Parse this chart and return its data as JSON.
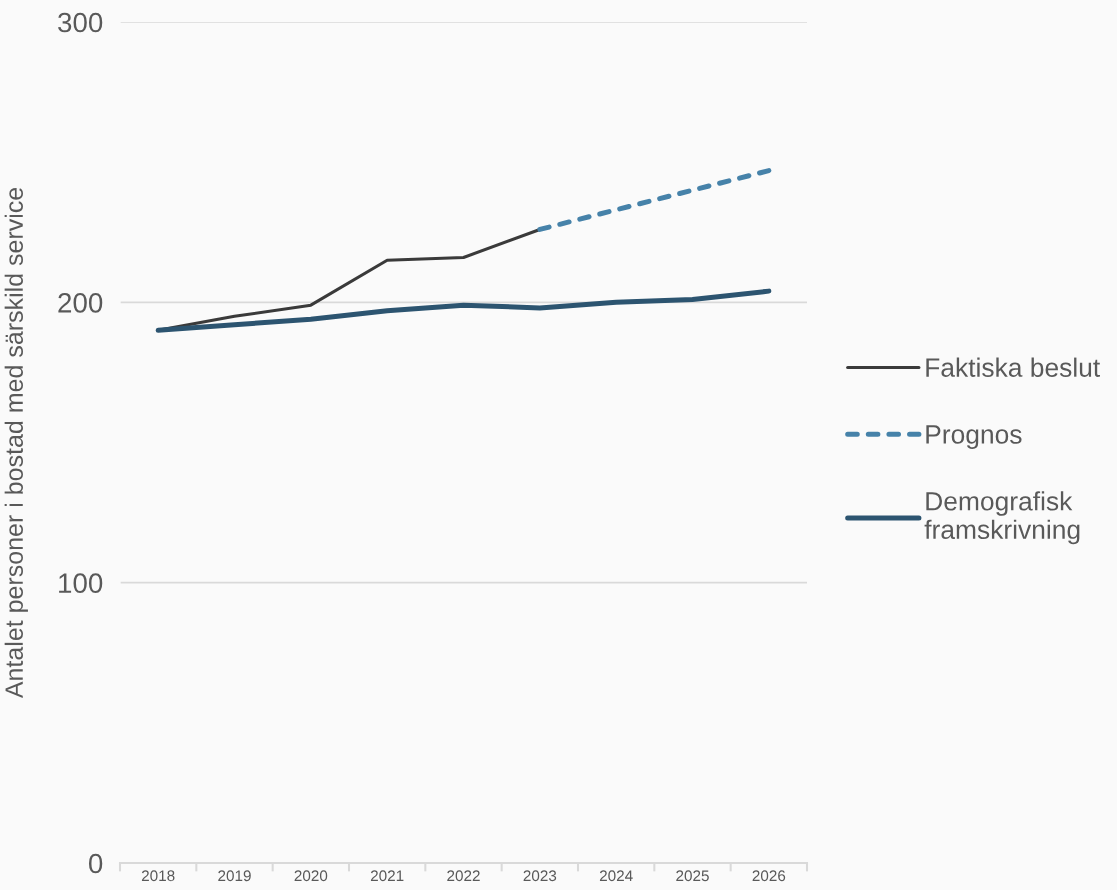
{
  "chart_data": {
    "type": "line",
    "ylabel": "Antalet personer i bostad med särskild service",
    "categories": [
      "2018",
      "2019",
      "2020",
      "2021",
      "2022",
      "2023",
      "2024",
      "2025",
      "2026"
    ],
    "series": [
      {
        "name": "Faktiska beslut",
        "color": "#3a3a3a",
        "line_style": "solid",
        "values": [
          190,
          195,
          199,
          215,
          216,
          226,
          null,
          null,
          null
        ]
      },
      {
        "name": "Prognos",
        "color": "#4682a9",
        "line_style": "dashed",
        "values": [
          null,
          null,
          null,
          null,
          null,
          226,
          233,
          240,
          247
        ]
      },
      {
        "name": "Demografisk\nframskrivning",
        "color": "#2c5470",
        "line_style": "solid",
        "values": [
          190,
          192,
          194,
          197,
          199,
          198,
          200,
          201,
          204
        ]
      }
    ],
    "ylim": [
      0,
      300
    ],
    "yticks": [
      0,
      100,
      200,
      300
    ],
    "grid": "y",
    "legend": "right",
    "marker": "none"
  }
}
